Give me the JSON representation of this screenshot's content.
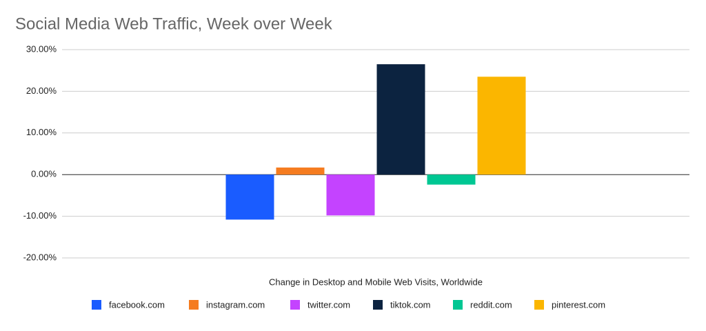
{
  "chart_data": {
    "type": "bar",
    "title": "Social Media Web Traffic, Week over Week",
    "x_label": "Change in Desktop and Mobile Web Visits, Worldwide",
    "categories": [
      null
    ],
    "series": [
      {
        "name": "facebook.com",
        "color": "#1a5cff",
        "values": [
          -10.8
        ]
      },
      {
        "name": "instagram.com",
        "color": "#f57c20",
        "values": [
          1.7
        ]
      },
      {
        "name": "twitter.com",
        "color": "#c443ff",
        "values": [
          -9.8
        ]
      },
      {
        "name": "tiktok.com",
        "color": "#0c2340",
        "values": [
          26.5
        ]
      },
      {
        "name": "reddit.com",
        "color": "#00c793",
        "values": [
          -2.4
        ]
      },
      {
        "name": "pinterest.com",
        "color": "#fbb600",
        "values": [
          23.5
        ]
      }
    ],
    "ylim": [
      -20,
      30
    ],
    "yticks": [
      {
        "value": -20,
        "label": "-20.00%"
      },
      {
        "value": -10,
        "label": "-10.00%"
      },
      {
        "value": 0,
        "label": "0.00%"
      },
      {
        "value": 10,
        "label": "10.00%"
      },
      {
        "value": 20,
        "label": "20.00%"
      },
      {
        "value": 30,
        "label": "30.00%"
      }
    ],
    "grid": true,
    "legend": "bottom"
  }
}
